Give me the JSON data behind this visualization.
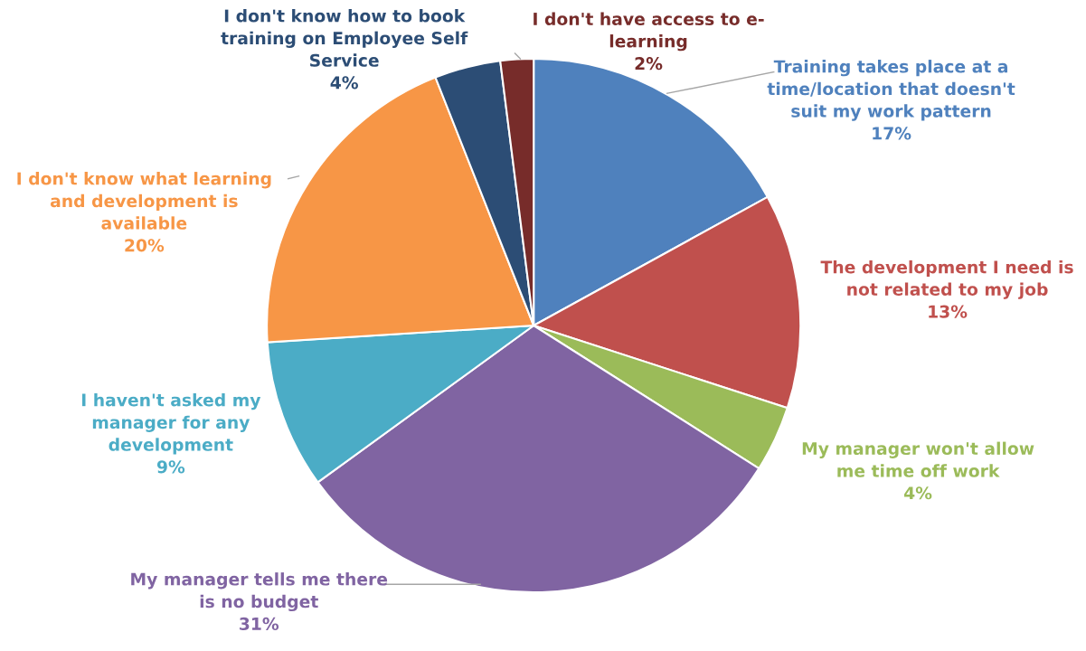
{
  "chart_data": {
    "type": "pie",
    "categories": [
      "Training takes place at a\ntime/location that doesn't\nsuit my work pattern",
      "The development I need is\nnot related to my job",
      "My manager won't allow\nme time off work",
      "My manager tells me there\nis no budget",
      "I haven't asked my\nmanager for any\ndevelopment",
      "I don't know what learning\nand development is\navailable",
      "I don't know how to book\ntraining on Employee Self\nService",
      "I don't have access to e-\nlearning"
    ],
    "values": [
      17,
      13,
      4,
      31,
      9,
      20,
      4,
      2
    ],
    "colors": [
      "#4f81bd",
      "#c0504d",
      "#9bbb59",
      "#8064a2",
      "#4bacc6",
      "#f79646",
      "#2c4d75",
      "#772c2a"
    ],
    "value_labels": [
      "17%",
      "13%",
      "4%",
      "31%",
      "9%",
      "20%",
      "4%",
      "2%"
    ]
  }
}
